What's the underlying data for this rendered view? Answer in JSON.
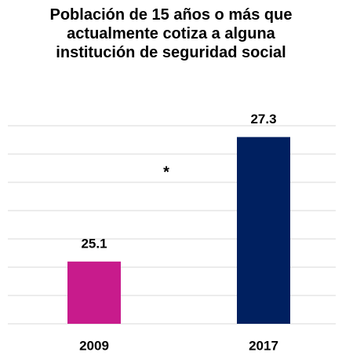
{
  "chart_data": {
    "type": "bar",
    "title": "Población de 15 años o más que actualmente cotiza a alguna institución de seguridad social",
    "categories": [
      "2009",
      "2017"
    ],
    "values": [
      25.1,
      27.3
    ],
    "colors": [
      "#c81b8c",
      "#002060"
    ],
    "annotation": "*",
    "ylim": [
      24,
      27.5
    ],
    "yticks": [
      24,
      24.5,
      25,
      25.5,
      26,
      26.5,
      27,
      27.5
    ],
    "grid": true
  }
}
